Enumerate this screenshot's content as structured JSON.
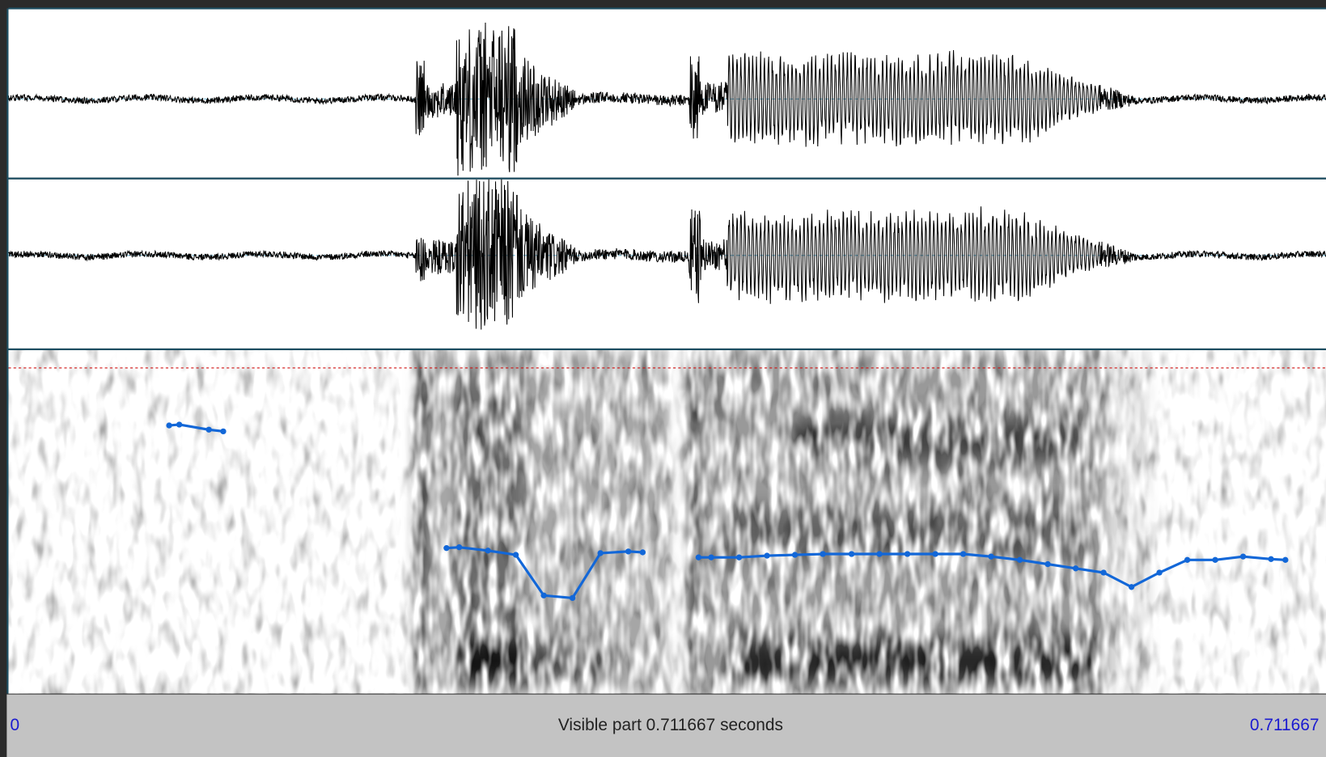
{
  "footer": {
    "start_time": "0",
    "visible_part": "Visible part 0.711667 seconds",
    "end_time": "0.711667"
  }
}
